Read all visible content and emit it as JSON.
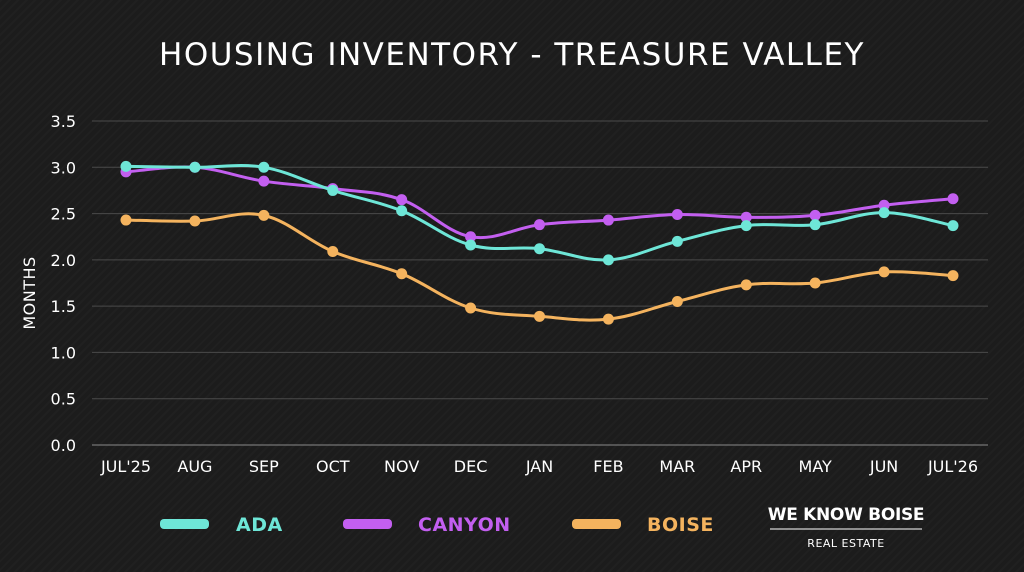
{
  "chart_data": {
    "type": "line",
    "title": "HOUSING INVENTORY - TREASURE VALLEY",
    "ylabel": "MONTHS",
    "xlabel": "",
    "categories": [
      "JUL'25",
      "AUG",
      "SEP",
      "OCT",
      "NOV",
      "DEC",
      "JAN",
      "FEB",
      "MAR",
      "APR",
      "MAY",
      "JUN",
      "JUL'26"
    ],
    "ylim": [
      0,
      3.5
    ],
    "yticks": [
      "0.0",
      "0.5",
      "1.0",
      "1.5",
      "2.0",
      "2.5",
      "3.0",
      "3.5"
    ],
    "grid": true,
    "legend_position": "bottom",
    "series": [
      {
        "name": "ADA",
        "color": "#6ee6d7",
        "values": [
          3.01,
          3.0,
          3.0,
          2.75,
          2.53,
          2.16,
          2.12,
          2.0,
          2.2,
          2.37,
          2.38,
          2.51,
          2.37
        ]
      },
      {
        "name": "CANYON",
        "color": "#c35ff0",
        "values": [
          2.95,
          3.0,
          2.85,
          2.77,
          2.65,
          2.25,
          2.38,
          2.43,
          2.49,
          2.46,
          2.48,
          2.59,
          2.66
        ]
      },
      {
        "name": "BOISE",
        "color": "#f4b35e",
        "values": [
          2.43,
          2.42,
          2.48,
          2.09,
          1.85,
          1.48,
          1.39,
          1.36,
          1.55,
          1.73,
          1.75,
          1.87,
          1.83
        ]
      }
    ]
  },
  "brand": {
    "name": "WE KNOW BOISE",
    "tagline": "REAL ESTATE"
  }
}
